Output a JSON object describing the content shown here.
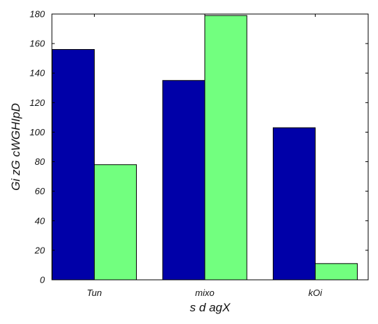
{
  "chart_data": {
    "type": "bar",
    "categories": [
      "Tun",
      "mixo",
      "kOi"
    ],
    "series": [
      {
        "values": [
          156,
          135,
          103
        ],
        "color": "#0000a8"
      },
      {
        "values": [
          78,
          179,
          11
        ],
        "color": "#72ff7f"
      }
    ],
    "xlabel": "s d agX",
    "ylabel": "Gi zG cWGHIpD",
    "ylim": [
      0,
      180
    ],
    "yticks": [
      0,
      20,
      40,
      60,
      80,
      100,
      120,
      140,
      160,
      180
    ],
    "grid": false,
    "legend": "none"
  }
}
